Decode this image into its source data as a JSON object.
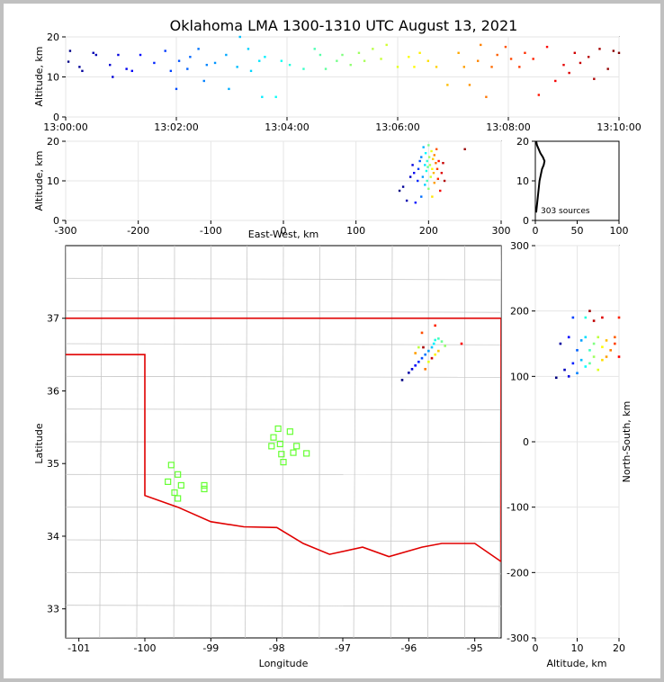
{
  "title": "Oklahoma LMA 1300-1310 UTC August 13, 2021",
  "source_count_label": "303 sources",
  "chart_data": [
    {
      "id": "altitude-time",
      "type": "scatter",
      "xlabel": "",
      "ylabel": "Altitude, km",
      "x_ticks": [
        "13:00:00",
        "13:02:00",
        "13:04:00",
        "13:06:00",
        "13:08:00",
        "13:10:00"
      ],
      "xlim_minutes": [
        0,
        10
      ],
      "ylim": [
        0,
        20
      ],
      "y_ticks": [
        0,
        10,
        20
      ],
      "grid": true,
      "color_scale": "time, blue (13:00) to red (13:10)",
      "points": [
        [
          0.05,
          13.8
        ],
        [
          0.08,
          16.5
        ],
        [
          0.25,
          12.5
        ],
        [
          0.3,
          11.5
        ],
        [
          0.5,
          16
        ],
        [
          0.55,
          15.5
        ],
        [
          0.8,
          13
        ],
        [
          0.85,
          10
        ],
        [
          0.95,
          15.5
        ],
        [
          1.1,
          12
        ],
        [
          1.2,
          11.5
        ],
        [
          1.35,
          15.5
        ],
        [
          1.6,
          13.5
        ],
        [
          1.8,
          16.5
        ],
        [
          1.9,
          11.5
        ],
        [
          2.0,
          7
        ],
        [
          2.05,
          14
        ],
        [
          2.2,
          12
        ],
        [
          2.25,
          15
        ],
        [
          2.4,
          17
        ],
        [
          2.5,
          9
        ],
        [
          2.55,
          13
        ],
        [
          2.7,
          13.5
        ],
        [
          2.9,
          15.5
        ],
        [
          2.95,
          7
        ],
        [
          3.1,
          12.5
        ],
        [
          3.15,
          20
        ],
        [
          3.3,
          17
        ],
        [
          3.35,
          11.5
        ],
        [
          3.5,
          14
        ],
        [
          3.55,
          5
        ],
        [
          3.6,
          15
        ],
        [
          3.8,
          5
        ],
        [
          3.9,
          14
        ],
        [
          4.05,
          13
        ],
        [
          4.3,
          12
        ],
        [
          4.5,
          17
        ],
        [
          4.6,
          15.5
        ],
        [
          4.7,
          12
        ],
        [
          4.9,
          14
        ],
        [
          5.0,
          15.5
        ],
        [
          5.15,
          13
        ],
        [
          5.3,
          16
        ],
        [
          5.4,
          14
        ],
        [
          5.55,
          17
        ],
        [
          5.7,
          14.5
        ],
        [
          5.8,
          18
        ],
        [
          6.0,
          12.5
        ],
        [
          6.2,
          15
        ],
        [
          6.3,
          12.5
        ],
        [
          6.4,
          16
        ],
        [
          6.55,
          14
        ],
        [
          6.7,
          12.5
        ],
        [
          6.9,
          8
        ],
        [
          7.1,
          16
        ],
        [
          7.2,
          12.5
        ],
        [
          7.3,
          8
        ],
        [
          7.45,
          14
        ],
        [
          7.5,
          18
        ],
        [
          7.6,
          5
        ],
        [
          7.7,
          12.5
        ],
        [
          7.8,
          15.5
        ],
        [
          7.95,
          17.5
        ],
        [
          8.05,
          14.5
        ],
        [
          8.2,
          12.5
        ],
        [
          8.3,
          16
        ],
        [
          8.45,
          14.5
        ],
        [
          8.55,
          5.5
        ],
        [
          8.7,
          17.5
        ],
        [
          8.85,
          9
        ],
        [
          9.0,
          13
        ],
        [
          9.1,
          11
        ],
        [
          9.2,
          16
        ],
        [
          9.3,
          13.5
        ],
        [
          9.45,
          15
        ],
        [
          9.55,
          9.5
        ],
        [
          9.65,
          17
        ],
        [
          9.8,
          12
        ],
        [
          9.9,
          16.5
        ],
        [
          10.0,
          16
        ]
      ]
    },
    {
      "id": "altitude-eastwest",
      "type": "scatter",
      "xlabel": "East-West, km",
      "ylabel": "Altitude, km",
      "xlim": [
        -300,
        300
      ],
      "x_ticks": [
        -300,
        -200,
        -100,
        0,
        100,
        200,
        300
      ],
      "ylim": [
        0,
        20
      ],
      "y_ticks": [
        0,
        10,
        20
      ],
      "grid": true,
      "points": [
        [
          160,
          7.5
        ],
        [
          165,
          8.5
        ],
        [
          170,
          5
        ],
        [
          175,
          11
        ],
        [
          178,
          14
        ],
        [
          180,
          12
        ],
        [
          182,
          4.5
        ],
        [
          185,
          10
        ],
        [
          186,
          13
        ],
        [
          188,
          15
        ],
        [
          190,
          6
        ],
        [
          190,
          16
        ],
        [
          192,
          11
        ],
        [
          193,
          18.5
        ],
        [
          195,
          9
        ],
        [
          195,
          14
        ],
        [
          196,
          17
        ],
        [
          197,
          12.5
        ],
        [
          198,
          15
        ],
        [
          198,
          10
        ],
        [
          199,
          13.5
        ],
        [
          200,
          19
        ],
        [
          200,
          8
        ],
        [
          201,
          16
        ],
        [
          202,
          14
        ],
        [
          203,
          11
        ],
        [
          204,
          17.5
        ],
        [
          205,
          13
        ],
        [
          205,
          6
        ],
        [
          206,
          15.5
        ],
        [
          207,
          12
        ],
        [
          208,
          9.5
        ],
        [
          208,
          16.5
        ],
        [
          210,
          14.5
        ],
        [
          211,
          18
        ],
        [
          212,
          13
        ],
        [
          213,
          10.5
        ],
        [
          214,
          15
        ],
        [
          216,
          7.5
        ],
        [
          218,
          12
        ],
        [
          220,
          14.5
        ],
        [
          222,
          10
        ],
        [
          250,
          18
        ]
      ]
    },
    {
      "id": "altitude-histogram",
      "type": "bar",
      "xlim": [
        0,
        100
      ],
      "x_ticks": [
        0,
        50,
        100
      ],
      "ylim": [
        0,
        20
      ],
      "y_ticks": [
        0,
        10,
        20
      ],
      "values_by_altitude": [
        [
          2,
          1
        ],
        [
          4,
          2
        ],
        [
          6,
          3
        ],
        [
          8,
          4
        ],
        [
          10,
          5
        ],
        [
          12,
          7
        ],
        [
          13,
          8
        ],
        [
          14,
          10
        ],
        [
          15,
          11
        ],
        [
          16,
          9
        ],
        [
          17,
          6
        ],
        [
          18,
          4
        ],
        [
          19,
          2
        ],
        [
          20,
          1
        ]
      ]
    },
    {
      "id": "plan-view-map",
      "type": "scatter",
      "xlabel": "Longitude",
      "ylabel": "Latitude",
      "xlim": [
        -101.2,
        -94.6
      ],
      "ylim": [
        32.6,
        38.0
      ],
      "x_ticks": [
        "-101",
        "-100",
        "-99",
        "-98",
        "-97",
        "-96",
        "-95"
      ],
      "y_ticks": [
        "33",
        "34",
        "35",
        "36",
        "37"
      ],
      "stations": [
        [
          -99.6,
          34.98
        ],
        [
          -99.5,
          34.85
        ],
        [
          -99.65,
          34.75
        ],
        [
          -99.45,
          34.7
        ],
        [
          -99.55,
          34.6
        ],
        [
          -99.5,
          34.52
        ],
        [
          -99.1,
          34.7
        ],
        [
          -99.1,
          34.65
        ],
        [
          -97.98,
          35.48
        ],
        [
          -97.8,
          35.44
        ],
        [
          -98.05,
          35.36
        ],
        [
          -98.08,
          35.24
        ],
        [
          -97.95,
          35.27
        ],
        [
          -97.7,
          35.24
        ],
        [
          -97.93,
          35.13
        ],
        [
          -97.75,
          35.15
        ],
        [
          -97.55,
          35.14
        ],
        [
          -97.9,
          35.02
        ]
      ],
      "points": [
        [
          -96.1,
          36.15
        ],
        [
          -96.0,
          36.25
        ],
        [
          -95.95,
          36.3
        ],
        [
          -95.9,
          36.35
        ],
        [
          -95.85,
          36.4
        ],
        [
          -95.8,
          36.45
        ],
        [
          -95.75,
          36.5
        ],
        [
          -95.7,
          36.55
        ],
        [
          -95.65,
          36.6
        ],
        [
          -95.62,
          36.65
        ],
        [
          -95.6,
          36.7
        ],
        [
          -95.55,
          36.72
        ],
        [
          -95.5,
          36.68
        ],
        [
          -95.45,
          36.62
        ],
        [
          -95.85,
          36.6
        ],
        [
          -95.7,
          36.4
        ],
        [
          -95.6,
          36.5
        ],
        [
          -95.55,
          36.55
        ],
        [
          -95.9,
          36.52
        ],
        [
          -95.75,
          36.3
        ],
        [
          -95.8,
          36.8
        ],
        [
          -95.6,
          36.9
        ],
        [
          -95.2,
          36.65
        ],
        [
          -95.65,
          36.45
        ],
        [
          -95.78,
          36.6
        ]
      ]
    },
    {
      "id": "northsouth-altitude",
      "type": "scatter",
      "xlabel": "Altitude, km",
      "ylabel": "North-South, km",
      "xlim": [
        0,
        20
      ],
      "x_ticks": [
        0,
        10,
        20
      ],
      "ylim": [
        -300,
        300
      ],
      "y_ticks": [
        -300,
        -200,
        -100,
        0,
        100,
        200,
        300
      ],
      "grid": true,
      "points": [
        [
          5,
          98
        ],
        [
          6,
          150
        ],
        [
          7,
          110
        ],
        [
          8,
          100
        ],
        [
          8,
          160
        ],
        [
          9,
          120
        ],
        [
          9,
          190
        ],
        [
          10,
          140
        ],
        [
          10,
          105
        ],
        [
          11,
          155
        ],
        [
          11,
          125
        ],
        [
          12,
          160
        ],
        [
          12,
          115
        ],
        [
          12,
          190
        ],
        [
          13,
          140
        ],
        [
          13,
          120
        ],
        [
          14,
          150
        ],
        [
          14,
          130
        ],
        [
          15,
          160
        ],
        [
          15,
          110
        ],
        [
          16,
          145
        ],
        [
          16,
          125
        ],
        [
          17,
          155
        ],
        [
          17,
          130
        ],
        [
          18,
          140
        ],
        [
          19,
          160
        ],
        [
          19,
          150
        ],
        [
          20,
          190
        ],
        [
          20,
          130
        ],
        [
          16,
          190
        ],
        [
          14,
          185
        ],
        [
          13,
          200
        ]
      ]
    }
  ]
}
